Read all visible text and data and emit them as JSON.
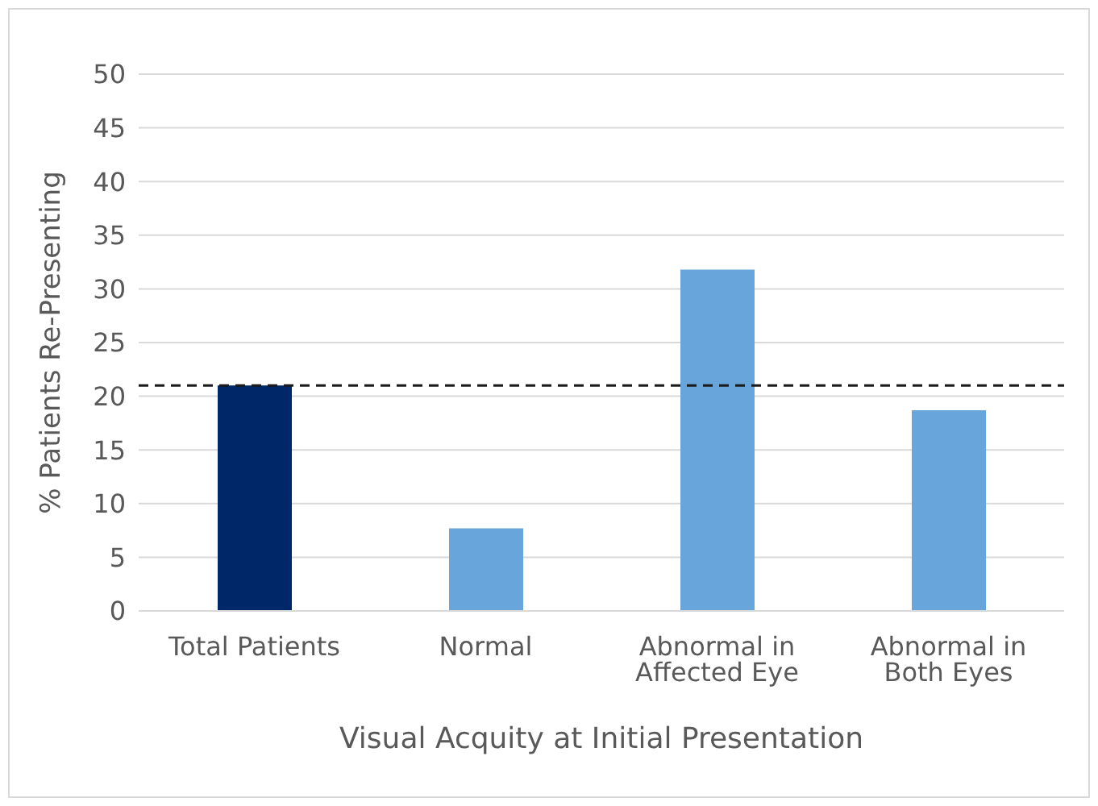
{
  "chart_data": {
    "type": "bar",
    "xlabel": "Visual Acquity at Initial Presentation",
    "ylabel": "% Patients Re-Presenting",
    "categories": [
      "Total Patients",
      "Normal",
      "Abnormal in Affected Eye",
      "Abnormal in Both Eyes"
    ],
    "values": [
      21,
      7.7,
      31.8,
      18.7
    ],
    "colors": [
      "#002868",
      "#67a5da",
      "#67a5da",
      "#67a5da"
    ],
    "ylim": [
      0,
      50
    ],
    "yticks": [
      0,
      5,
      10,
      15,
      20,
      25,
      30,
      35,
      40,
      45,
      50
    ],
    "grid": "y",
    "ref_lines": [
      {
        "axis": "y",
        "value": 21,
        "color": "#1a1a1a",
        "line_style": "dashed"
      }
    ]
  }
}
